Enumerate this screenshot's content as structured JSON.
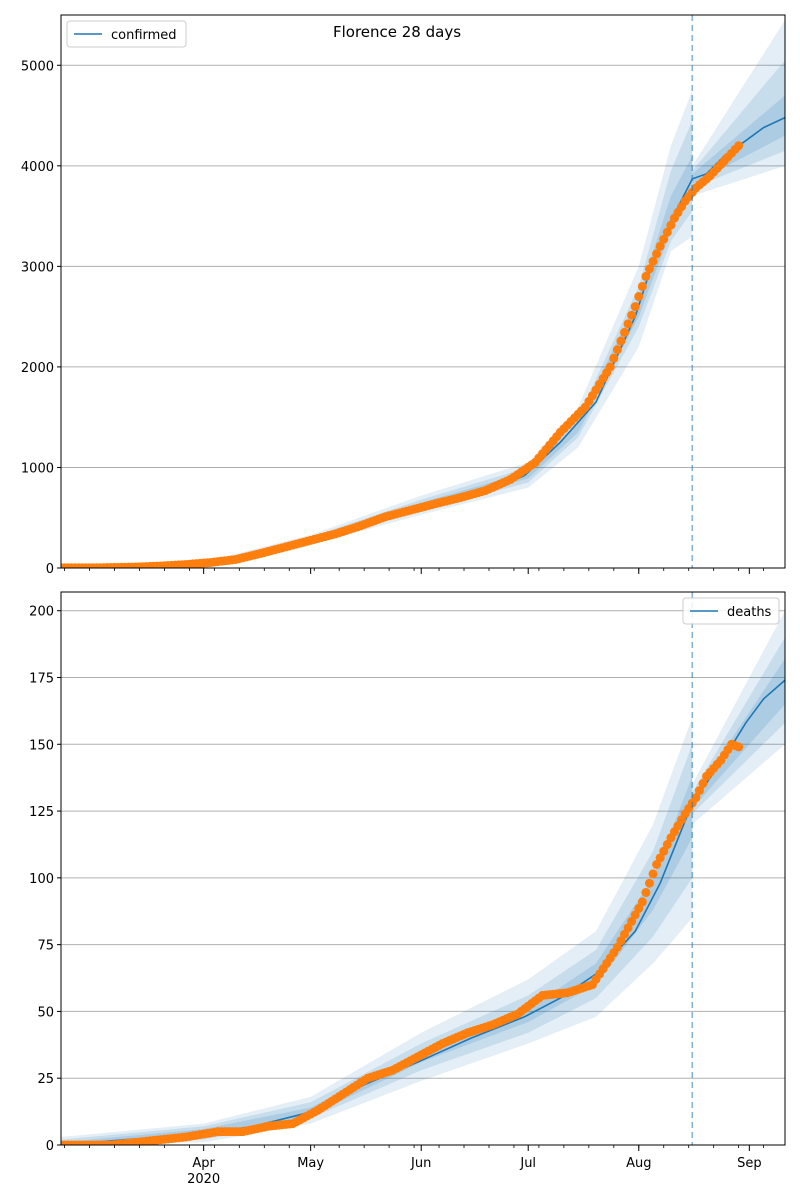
{
  "figure": {
    "title": "Florence 28 days",
    "colors": {
      "model": "#1f77b4",
      "observed": "#ff7f0e",
      "band": "#1f77b4",
      "grid": "#b0b0b0",
      "forecast_line": "#1f77b4"
    }
  },
  "chart_data": [
    {
      "type": "line",
      "title": "Florence 28 days",
      "xlabel": "",
      "ylabel": "",
      "x_axis": {
        "type": "date",
        "range": [
          "2020-02-21",
          "2020-09-11"
        ],
        "tick_labels": [
          "Apr\n2020",
          "May",
          "Jun",
          "Jul",
          "Aug",
          "Sep"
        ],
        "tick_dates": [
          "2020-04-01",
          "2020-05-01",
          "2020-06-01",
          "2020-07-01",
          "2020-08-01",
          "2020-09-01"
        ],
        "minor_ticks": "weekly"
      },
      "ylim": [
        0,
        5500
      ],
      "y_ticks": [
        0,
        1000,
        2000,
        3000,
        4000,
        5000
      ],
      "grid": "horizontal",
      "legend": "top-left",
      "forecast_start": "2020-08-16",
      "series": [
        {
          "name": "confirmed",
          "kind": "model-median",
          "points": [
            [
              "2020-02-21",
              0
            ],
            [
              "2020-03-10",
              0
            ],
            [
              "2020-03-20",
              10
            ],
            [
              "2020-03-31",
              30
            ],
            [
              "2020-04-10",
              70
            ],
            [
              "2020-04-20",
              150
            ],
            [
              "2020-04-30",
              280
            ],
            [
              "2020-05-10",
              380
            ],
            [
              "2020-05-20",
              500
            ],
            [
              "2020-05-31",
              600
            ],
            [
              "2020-06-10",
              680
            ],
            [
              "2020-06-20",
              760
            ],
            [
              "2020-06-30",
              920
            ],
            [
              "2020-07-10",
              1250
            ],
            [
              "2020-07-20",
              1650
            ],
            [
              "2020-07-31",
              2500
            ],
            [
              "2020-08-05",
              3050
            ],
            [
              "2020-08-10",
              3450
            ],
            [
              "2020-08-16",
              3870
            ],
            [
              "2020-08-20",
              3920
            ],
            [
              "2020-08-25",
              4100
            ],
            [
              "2020-08-31",
              4250
            ],
            [
              "2020-09-05",
              4380
            ],
            [
              "2020-09-11",
              4480
            ]
          ]
        },
        {
          "kind": "observed",
          "points": [
            [
              "2020-02-21",
              2
            ],
            [
              "2020-03-03",
              3
            ],
            [
              "2020-03-13",
              10
            ],
            [
              "2020-03-20",
              20
            ],
            [
              "2020-03-27",
              35
            ],
            [
              "2020-04-03",
              55
            ],
            [
              "2020-04-10",
              85
            ],
            [
              "2020-04-17",
              145
            ],
            [
              "2020-04-24",
              210
            ],
            [
              "2020-05-01",
              275
            ],
            [
              "2020-05-08",
              340
            ],
            [
              "2020-05-15",
              420
            ],
            [
              "2020-05-22",
              510
            ],
            [
              "2020-05-29",
              575
            ],
            [
              "2020-06-05",
              640
            ],
            [
              "2020-06-12",
              700
            ],
            [
              "2020-06-19",
              770
            ],
            [
              "2020-06-26",
              880
            ],
            [
              "2020-07-03",
              1050
            ],
            [
              "2020-07-10",
              1350
            ],
            [
              "2020-07-17",
              1600
            ],
            [
              "2020-07-24",
              2000
            ],
            [
              "2020-07-31",
              2600
            ],
            [
              "2020-08-03",
              2900
            ],
            [
              "2020-08-07",
              3200
            ],
            [
              "2020-08-11",
              3480
            ],
            [
              "2020-08-14",
              3650
            ],
            [
              "2020-08-17",
              3780
            ],
            [
              "2020-08-21",
              3900
            ],
            [
              "2020-08-25",
              4050
            ],
            [
              "2020-08-29",
              4200
            ]
          ]
        }
      ],
      "bands": [
        {
          "level": "outer",
          "points": [
            [
              "2020-02-21",
              0,
              0
            ],
            [
              "2020-04-01",
              20,
              60
            ],
            [
              "2020-05-01",
              230,
              330
            ],
            [
              "2020-06-01",
              530,
              720
            ],
            [
              "2020-07-01",
              800,
              1050
            ],
            [
              "2020-07-15",
              1200,
              1600
            ],
            [
              "2020-08-01",
              2200,
              3000
            ],
            [
              "2020-08-10",
              3150,
              4200
            ],
            [
              "2020-08-16",
              3300,
              4750
            ],
            [
              "2020-08-16",
              3700,
              4000
            ],
            [
              "2020-09-11",
              4000,
              5450
            ]
          ]
        },
        {
          "level": "middle",
          "points": [
            [
              "2020-02-21",
              0,
              0
            ],
            [
              "2020-04-01",
              25,
              50
            ],
            [
              "2020-05-01",
              250,
              310
            ],
            [
              "2020-06-01",
              570,
              680
            ],
            [
              "2020-07-01",
              850,
              1000
            ],
            [
              "2020-07-15",
              1300,
              1500
            ],
            [
              "2020-08-01",
              2400,
              2800
            ],
            [
              "2020-08-10",
              3250,
              3950
            ],
            [
              "2020-08-16",
              3550,
              4450
            ],
            [
              "2020-08-16",
              3780,
              3950
            ],
            [
              "2020-09-11",
              4150,
              5050
            ]
          ]
        },
        {
          "level": "inner",
          "points": [
            [
              "2020-02-21",
              0,
              0
            ],
            [
              "2020-04-01",
              28,
              42
            ],
            [
              "2020-05-01",
              265,
              295
            ],
            [
              "2020-06-01",
              600,
              650
            ],
            [
              "2020-07-01",
              890,
              960
            ],
            [
              "2020-07-15",
              1350,
              1450
            ],
            [
              "2020-08-01",
              2500,
              2700
            ],
            [
              "2020-08-10",
              3350,
              3700
            ],
            [
              "2020-08-16",
              3700,
              4100
            ],
            [
              "2020-08-16",
              3820,
              3920
            ],
            [
              "2020-09-11",
              4300,
              4700
            ]
          ]
        }
      ]
    },
    {
      "type": "line",
      "xlabel": "",
      "ylabel": "",
      "x_axis": {
        "type": "date",
        "range": [
          "2020-02-21",
          "2020-09-11"
        ],
        "tick_labels": [
          "Apr\n2020",
          "May",
          "Jun",
          "Jul",
          "Aug",
          "Sep"
        ],
        "tick_dates": [
          "2020-04-01",
          "2020-05-01",
          "2020-06-01",
          "2020-07-01",
          "2020-08-01",
          "2020-09-01"
        ],
        "minor_ticks": "weekly"
      },
      "ylim": [
        0,
        207
      ],
      "y_ticks": [
        0,
        25,
        50,
        75,
        100,
        125,
        150,
        175,
        200
      ],
      "grid": "horizontal",
      "legend": "top-right",
      "forecast_start": "2020-08-16",
      "series": [
        {
          "name": "deaths",
          "kind": "model-median",
          "points": [
            [
              "2020-02-21",
              0
            ],
            [
              "2020-03-10",
              2
            ],
            [
              "2020-03-31",
              4
            ],
            [
              "2020-04-15",
              7
            ],
            [
              "2020-04-30",
              12
            ],
            [
              "2020-05-15",
              22
            ],
            [
              "2020-05-31",
              31
            ],
            [
              "2020-06-15",
              40
            ],
            [
              "2020-06-30",
              48
            ],
            [
              "2020-07-10",
              55
            ],
            [
              "2020-07-20",
              64
            ],
            [
              "2020-07-31",
              80
            ],
            [
              "2020-08-07",
              98
            ],
            [
              "2020-08-16",
              128
            ],
            [
              "2020-08-25",
              145
            ],
            [
              "2020-08-31",
              158
            ],
            [
              "2020-09-05",
              167
            ],
            [
              "2020-09-11",
              174
            ]
          ]
        },
        {
          "kind": "observed",
          "points": [
            [
              "2020-02-21",
              0
            ],
            [
              "2020-03-06",
              0
            ],
            [
              "2020-03-20",
              2
            ],
            [
              "2020-03-27",
              3
            ],
            [
              "2020-04-05",
              5
            ],
            [
              "2020-04-12",
              5
            ],
            [
              "2020-04-19",
              7
            ],
            [
              "2020-04-26",
              8
            ],
            [
              "2020-05-03",
              13
            ],
            [
              "2020-05-10",
              19
            ],
            [
              "2020-05-17",
              25
            ],
            [
              "2020-05-24",
              28
            ],
            [
              "2020-05-31",
              33
            ],
            [
              "2020-06-07",
              38
            ],
            [
              "2020-06-14",
              42
            ],
            [
              "2020-06-21",
              45
            ],
            [
              "2020-06-28",
              49
            ],
            [
              "2020-07-05",
              56
            ],
            [
              "2020-07-12",
              57
            ],
            [
              "2020-07-19",
              60
            ],
            [
              "2020-07-26",
              74
            ],
            [
              "2020-08-02",
              91
            ],
            [
              "2020-08-06",
              105
            ],
            [
              "2020-08-10",
              115
            ],
            [
              "2020-08-14",
              124
            ],
            [
              "2020-08-17",
              130
            ],
            [
              "2020-08-20",
              138
            ],
            [
              "2020-08-24",
              144
            ],
            [
              "2020-08-27",
              150
            ],
            [
              "2020-08-29",
              149
            ]
          ]
        }
      ],
      "bands": [
        {
          "level": "outer",
          "points": [
            [
              "2020-02-21",
              0,
              3
            ],
            [
              "2020-04-01",
              1,
              8
            ],
            [
              "2020-05-01",
              8,
              18
            ],
            [
              "2020-06-01",
              24,
              42
            ],
            [
              "2020-07-01",
              38,
              62
            ],
            [
              "2020-07-20",
              48,
              80
            ],
            [
              "2020-08-05",
              68,
              120
            ],
            [
              "2020-08-16",
              85,
              160
            ],
            [
              "2020-08-16",
              120,
              135
            ],
            [
              "2020-09-11",
              150,
              200
            ]
          ]
        },
        {
          "level": "middle",
          "points": [
            [
              "2020-02-21",
              0,
              2
            ],
            [
              "2020-04-01",
              2,
              7
            ],
            [
              "2020-05-01",
              10,
              16
            ],
            [
              "2020-06-01",
              28,
              38
            ],
            [
              "2020-07-01",
              42,
              56
            ],
            [
              "2020-07-20",
              55,
              73
            ],
            [
              "2020-08-05",
              78,
              110
            ],
            [
              "2020-08-16",
              100,
              150
            ],
            [
              "2020-08-16",
              124,
              132
            ],
            [
              "2020-09-11",
              158,
              190
            ]
          ]
        },
        {
          "level": "inner",
          "points": [
            [
              "2020-02-21",
              0,
              1
            ],
            [
              "2020-04-01",
              3,
              6
            ],
            [
              "2020-05-01",
              11,
              14
            ],
            [
              "2020-06-01",
              31,
              35
            ],
            [
              "2020-07-01",
              46,
              51
            ],
            [
              "2020-07-20",
              60,
              68
            ],
            [
              "2020-08-05",
              88,
              100
            ],
            [
              "2020-08-16",
              115,
              138
            ],
            [
              "2020-08-16",
              126,
              130
            ],
            [
              "2020-09-11",
              165,
              182
            ]
          ]
        }
      ]
    }
  ]
}
